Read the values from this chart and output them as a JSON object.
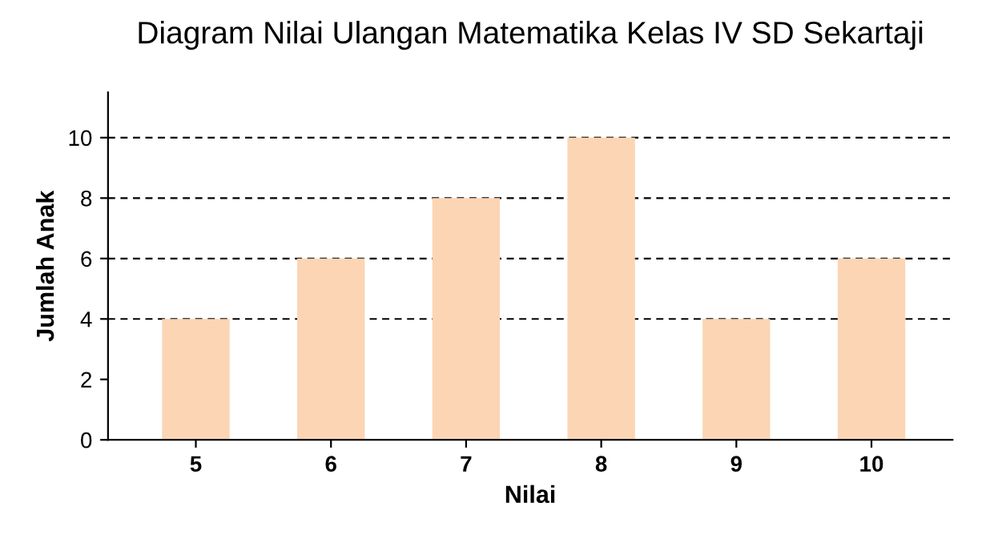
{
  "chart_data": {
    "type": "bar",
    "title": "Diagram Nilai Ulangan Matematika Kelas IV SD Sekartaji",
    "xlabel": "Nilai",
    "ylabel": "Jumlah Anak",
    "categories": [
      "5",
      "6",
      "7",
      "8",
      "9",
      "10"
    ],
    "values": [
      4,
      6,
      8,
      10,
      4,
      6
    ],
    "color": "#fcd5b4",
    "ylim": [
      0,
      11.5
    ],
    "yticks": [
      0,
      2,
      4,
      6,
      8,
      10
    ],
    "grid": false,
    "ref_lines": [
      {
        "axis": "y",
        "value": 4,
        "line_style": "dashed",
        "color": "#000000"
      },
      {
        "axis": "y",
        "value": 6,
        "line_style": "dashed",
        "color": "#000000"
      },
      {
        "axis": "y",
        "value": 8,
        "line_style": "dashed",
        "color": "#000000"
      },
      {
        "axis": "y",
        "value": 10,
        "line_style": "dashed",
        "color": "#000000"
      }
    ]
  }
}
